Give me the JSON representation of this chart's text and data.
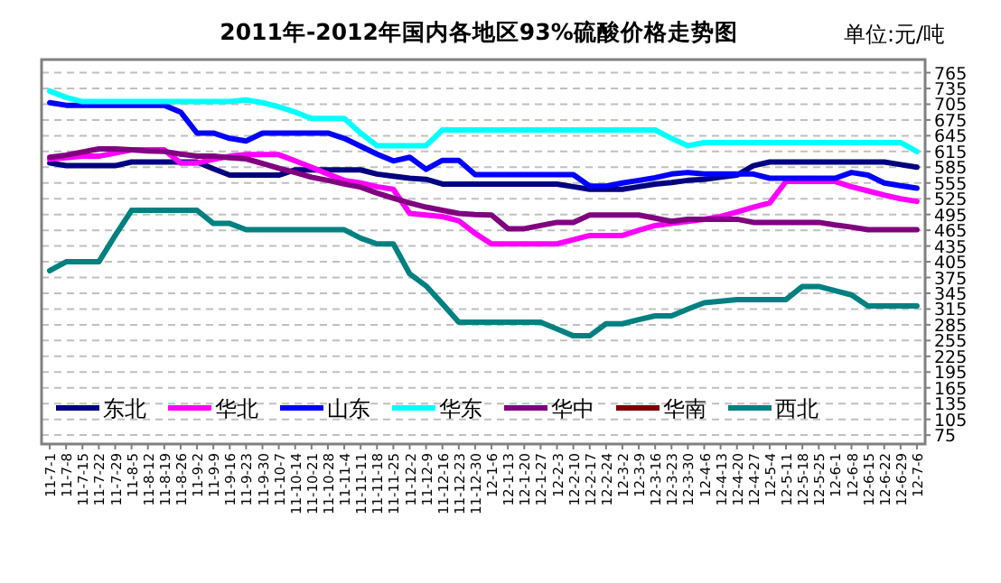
{
  "chart_data": {
    "type": "line",
    "title": "2011年-2012年国内各地区93%硫酸价格走势图",
    "annotations": [
      "单位:元/吨"
    ],
    "categories": [
      "11-7-1",
      "11-7-8",
      "11-7-15",
      "11-7-22",
      "11-7-29",
      "11-8-5",
      "11-8-12",
      "11-8-19",
      "11-8-26",
      "11-9-2",
      "11-9-9",
      "11-9-16",
      "11-9-23",
      "11-9-30",
      "11-10-7",
      "11-10-14",
      "11-10-21",
      "11-10-28",
      "11-11-4",
      "11-11-11",
      "11-11-18",
      "11-11-25",
      "11-12-2",
      "11-12-9",
      "11-12-16",
      "11-12-23",
      "11-12-30",
      "12-1-6",
      "12-1-13",
      "12-1-20",
      "12-1-27",
      "12-2-3",
      "12-2-10",
      "12-2-17",
      "12-2-24",
      "12-3-2",
      "12-3-9",
      "12-3-16",
      "12-3-23",
      "12-3-30",
      "12-4-6",
      "12-4-13",
      "12-4-20",
      "12-4-27",
      "12-5-4",
      "12-5-11",
      "12-5-18",
      "12-5-25",
      "12-6-1",
      "12-6-8",
      "12-6-15",
      "12-6-22",
      "12-6-29",
      "12-7-6"
    ],
    "series": [
      {
        "name": "东北",
        "color": "#000080",
        "values": [
          593,
          588,
          588,
          588,
          588,
          595,
          595,
          595,
          595,
          595,
          582,
          570,
          570,
          570,
          570,
          580,
          580,
          580,
          580,
          580,
          572,
          568,
          564,
          562,
          553,
          553,
          553,
          553,
          553,
          553,
          553,
          553,
          548,
          543,
          543,
          543,
          548,
          553,
          556,
          560,
          562,
          566,
          570,
          588,
          595,
          595,
          595,
          595,
          595,
          595,
          595,
          595,
          590,
          585
        ]
      },
      {
        "name": "华北",
        "color": "#ff00ff",
        "values": [
          600,
          603,
          606,
          606,
          612,
          618,
          618,
          618,
          593,
          593,
          600,
          606,
          609,
          609,
          609,
          597,
          585,
          572,
          560,
          555,
          548,
          543,
          497,
          494,
          491,
          483,
          459,
          439,
          439,
          439,
          439,
          439,
          447,
          455,
          455,
          455,
          465,
          474,
          478,
          482,
          486,
          491,
          500,
          509,
          517,
          558,
          558,
          558,
          558,
          548,
          540,
          532,
          525,
          520
        ]
      },
      {
        "name": "山东",
        "color": "#0000ff",
        "values": [
          708,
          703,
          703,
          703,
          703,
          703,
          703,
          703,
          690,
          650,
          650,
          640,
          635,
          650,
          650,
          650,
          650,
          650,
          640,
          625,
          610,
          597,
          604,
          581,
          598,
          598,
          571,
          571,
          571,
          571,
          571,
          571,
          571,
          549,
          549,
          555,
          560,
          565,
          572,
          575,
          572,
          572,
          572,
          572,
          564,
          564,
          564,
          564,
          564,
          575,
          570,
          555,
          550,
          545
        ]
      },
      {
        "name": "华东",
        "color": "#00ffff",
        "values": [
          730,
          718,
          710,
          710,
          710,
          710,
          710,
          710,
          710,
          710,
          710,
          710,
          713,
          708,
          700,
          690,
          678,
          678,
          678,
          650,
          626,
          626,
          626,
          626,
          656,
          656,
          656,
          656,
          656,
          656,
          656,
          656,
          656,
          656,
          656,
          656,
          656,
          656,
          640,
          626,
          632,
          632,
          632,
          632,
          632,
          632,
          632,
          632,
          632,
          632,
          632,
          632,
          632,
          615
        ]
      },
      {
        "name": "华中",
        "color": "#800080",
        "values": [
          604,
          608,
          614,
          620,
          620,
          618,
          616,
          615,
          610,
          606,
          606,
          603,
          601,
          592,
          583,
          575,
          566,
          560,
          553,
          547,
          536,
          526,
          517,
          509,
          503,
          497,
          495,
          494,
          468,
          468,
          474,
          480,
          480,
          494,
          494,
          494,
          494,
          488,
          482,
          486,
          486,
          486,
          486,
          480,
          480,
          480,
          480,
          480,
          475,
          471,
          466,
          466,
          466,
          466
        ]
      },
      {
        "name": "华南",
        "color": "#800000",
        "values": [
          null,
          null,
          null,
          null,
          null,
          null,
          null,
          null,
          null,
          null,
          null,
          null,
          null,
          null,
          null,
          null,
          null,
          null,
          null,
          null,
          null,
          null,
          null,
          null,
          null,
          null,
          null,
          null,
          null,
          null,
          null,
          null,
          null,
          null,
          null,
          null,
          null,
          null,
          null,
          null,
          null,
          null,
          null,
          null,
          null,
          null,
          null,
          null,
          null,
          null,
          null,
          null,
          null,
          null
        ]
      },
      {
        "name": "西北",
        "color": "#008080",
        "values": [
          388,
          405,
          405,
          405,
          455,
          503,
          503,
          503,
          503,
          503,
          478,
          478,
          466,
          466,
          466,
          466,
          466,
          466,
          466,
          450,
          439,
          439,
          382,
          359,
          325,
          290,
          290,
          290,
          290,
          290,
          290,
          277,
          264,
          264,
          287,
          287,
          295,
          302,
          302,
          315,
          327,
          330,
          333,
          333,
          333,
          333,
          358,
          358,
          350,
          342,
          321,
          321,
          321,
          321
        ]
      }
    ],
    "ylim": [
      58,
      790
    ],
    "yticks": [
      75,
      105,
      135,
      165,
      195,
      225,
      255,
      285,
      315,
      345,
      375,
      405,
      435,
      465,
      495,
      525,
      555,
      585,
      615,
      645,
      675,
      705,
      735,
      765
    ],
    "grid": "y",
    "legend": "bottom",
    "marker": "none",
    "line_style": "solid"
  }
}
